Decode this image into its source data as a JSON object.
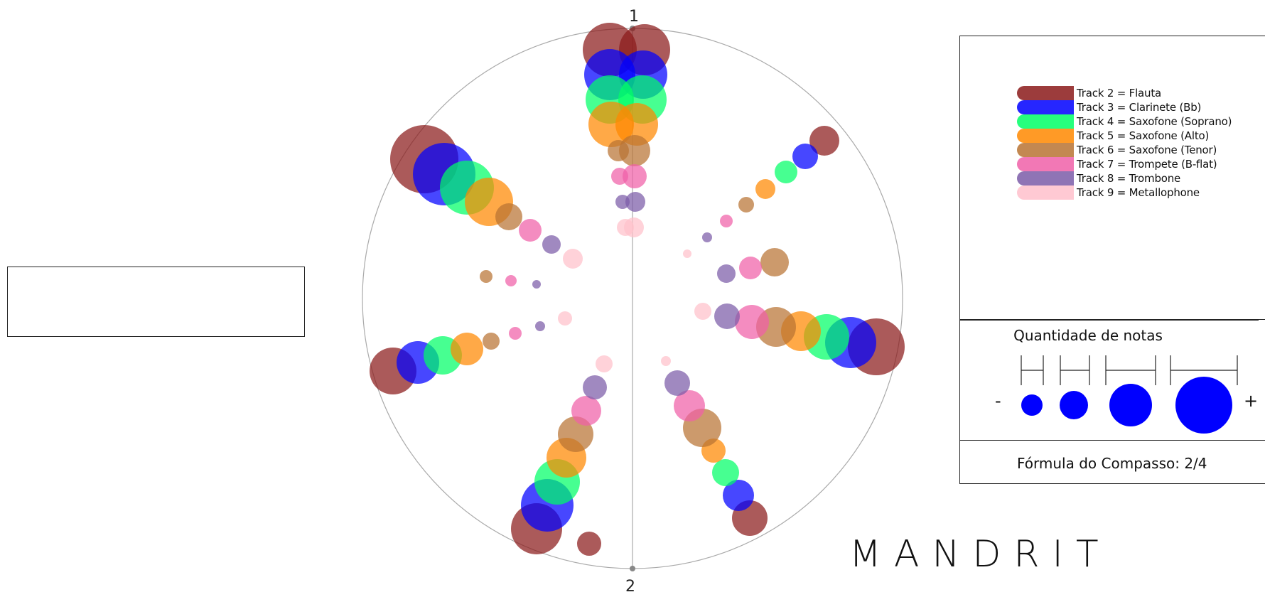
{
  "polar": {
    "label_top": "1",
    "label_bottom": "2"
  },
  "legend": {
    "items": [
      {
        "label": "Track 2 = Flauta",
        "color": "#8B1A1A"
      },
      {
        "label": "Track 3 = Clarinete (Bb)",
        "color": "#0000FF"
      },
      {
        "label": "Track 4 = Saxofone (Soprano)",
        "color": "#00FF66"
      },
      {
        "label": "Track 5 = Saxofone (Alto)",
        "color": "#FF8800"
      },
      {
        "label": "Track 6 = Saxofone (Tenor)",
        "color": "#B87333"
      },
      {
        "label": "Track 7 = Trompete (B-flat)",
        "color": "#F060A8"
      },
      {
        "label": "Track 8 = Trombone",
        "color": "#7B5CA8"
      },
      {
        "label": "Track 9 = Metallophone",
        "color": "#FFC0CB"
      }
    ]
  },
  "size_legend": {
    "title": "Quantidade de notas",
    "minus": "-",
    "plus": "+",
    "color": "#0000FF"
  },
  "time_signature": {
    "text": "Fórmula do Compasso: 2/4"
  },
  "brand": "MANDRIT"
}
